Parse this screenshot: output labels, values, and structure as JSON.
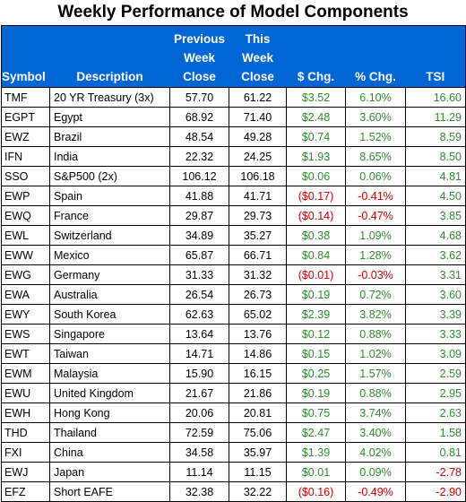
{
  "title": "Weekly Performance of Model Components",
  "headers": {
    "symbol": "Symbol",
    "description": "Description",
    "prev_line1": "Previous",
    "prev_line2": "Week",
    "prev_line3": "Close",
    "this_line1": "This",
    "this_line2": "Week",
    "this_line3": "Close",
    "dollar_chg": "$ Chg.",
    "pct_chg": "% Chg.",
    "tsi": "TSI"
  },
  "colors": {
    "header_bg": "#0066d6",
    "positive": "#2e8b2e",
    "negative": "#cc0000"
  },
  "rows": [
    {
      "symbol": "TMF",
      "description": "20 YR Treasury (3x)",
      "prev": "57.70",
      "curr": "61.22",
      "dchg": "$3.52",
      "pchg": "6.10%",
      "tsi": "16.60",
      "d_neg": false,
      "p_neg": false,
      "t_neg": false
    },
    {
      "symbol": "EGPT",
      "description": "Egypt",
      "prev": "68.92",
      "curr": "71.40",
      "dchg": "$2.48",
      "pchg": "3.60%",
      "tsi": "11.29",
      "d_neg": false,
      "p_neg": false,
      "t_neg": false
    },
    {
      "symbol": "EWZ",
      "description": "Brazil",
      "prev": "48.54",
      "curr": "49.28",
      "dchg": "$0.74",
      "pchg": "1.52%",
      "tsi": "8.59",
      "d_neg": false,
      "p_neg": false,
      "t_neg": false
    },
    {
      "symbol": "IFN",
      "description": "India",
      "prev": "22.32",
      "curr": "24.25",
      "dchg": "$1.93",
      "pchg": "8.65%",
      "tsi": "8.50",
      "d_neg": false,
      "p_neg": false,
      "t_neg": false
    },
    {
      "symbol": "SSO",
      "description": "S&P500 (2x)",
      "prev": "106.12",
      "curr": "106.18",
      "dchg": "$0.06",
      "pchg": "0.06%",
      "tsi": "4.81",
      "d_neg": false,
      "p_neg": false,
      "t_neg": false
    },
    {
      "symbol": "EWP",
      "description": "Spain",
      "prev": "41.88",
      "curr": "41.71",
      "dchg": "($0.17)",
      "pchg": "-0.41%",
      "tsi": "4.50",
      "d_neg": true,
      "p_neg": true,
      "t_neg": false
    },
    {
      "symbol": "EWQ",
      "description": "France",
      "prev": "29.87",
      "curr": "29.73",
      "dchg": "($0.14)",
      "pchg": "-0.47%",
      "tsi": "3.85",
      "d_neg": true,
      "p_neg": true,
      "t_neg": false
    },
    {
      "symbol": "EWL",
      "description": "Switzerland",
      "prev": "34.89",
      "curr": "35.27",
      "dchg": "$0.38",
      "pchg": "1.09%",
      "tsi": "4.68",
      "d_neg": false,
      "p_neg": false,
      "t_neg": false
    },
    {
      "symbol": "EWW",
      "description": "Mexico",
      "prev": "65.87",
      "curr": "66.71",
      "dchg": "$0.84",
      "pchg": "1.28%",
      "tsi": "3.62",
      "d_neg": false,
      "p_neg": false,
      "t_neg": false
    },
    {
      "symbol": "EWG",
      "description": "Germany",
      "prev": "31.33",
      "curr": "31.32",
      "dchg": "($0.01)",
      "pchg": "-0.03%",
      "tsi": "3.31",
      "d_neg": true,
      "p_neg": true,
      "t_neg": false
    },
    {
      "symbol": "EWA",
      "description": "Australia",
      "prev": "26.54",
      "curr": "26.73",
      "dchg": "$0.19",
      "pchg": "0.72%",
      "tsi": "3.60",
      "d_neg": false,
      "p_neg": false,
      "t_neg": false
    },
    {
      "symbol": "EWY",
      "description": "South Korea",
      "prev": "62.63",
      "curr": "65.02",
      "dchg": "$2.39",
      "pchg": "3.82%",
      "tsi": "3.39",
      "d_neg": false,
      "p_neg": false,
      "t_neg": false
    },
    {
      "symbol": "EWS",
      "description": "Singapore",
      "prev": "13.64",
      "curr": "13.76",
      "dchg": "$0.12",
      "pchg": "0.88%",
      "tsi": "3.33",
      "d_neg": false,
      "p_neg": false,
      "t_neg": false
    },
    {
      "symbol": "EWT",
      "description": "Taiwan",
      "prev": "14.71",
      "curr": "14.86",
      "dchg": "$0.15",
      "pchg": "1.02%",
      "tsi": "3.09",
      "d_neg": false,
      "p_neg": false,
      "t_neg": false
    },
    {
      "symbol": "EWM",
      "description": "Malaysia",
      "prev": "15.90",
      "curr": "16.15",
      "dchg": "$0.25",
      "pchg": "1.57%",
      "tsi": "2.59",
      "d_neg": false,
      "p_neg": false,
      "t_neg": false
    },
    {
      "symbol": "EWU",
      "description": "United Kingdom",
      "prev": "21.67",
      "curr": "21.86",
      "dchg": "$0.19",
      "pchg": "0.88%",
      "tsi": "2.95",
      "d_neg": false,
      "p_neg": false,
      "t_neg": false
    },
    {
      "symbol": "EWH",
      "description": "Hong Kong",
      "prev": "20.06",
      "curr": "20.81",
      "dchg": "$0.75",
      "pchg": "3.74%",
      "tsi": "2.63",
      "d_neg": false,
      "p_neg": false,
      "t_neg": false
    },
    {
      "symbol": "THD",
      "description": "Thailand",
      "prev": "72.59",
      "curr": "75.06",
      "dchg": "$2.47",
      "pchg": "3.40%",
      "tsi": "1.58",
      "d_neg": false,
      "p_neg": false,
      "t_neg": false
    },
    {
      "symbol": "FXI",
      "description": "China",
      "prev": "34.58",
      "curr": "35.97",
      "dchg": "$1.39",
      "pchg": "4.02%",
      "tsi": "0.81",
      "d_neg": false,
      "p_neg": false,
      "t_neg": false
    },
    {
      "symbol": "EWJ",
      "description": "Japan",
      "prev": "11.14",
      "curr": "11.15",
      "dchg": "$0.01",
      "pchg": "0.09%",
      "tsi": "-2.78",
      "d_neg": false,
      "p_neg": false,
      "t_neg": true
    },
    {
      "symbol": "EFZ",
      "description": "Short EAFE",
      "prev": "32.38",
      "curr": "32.22",
      "dchg": "($0.16)",
      "pchg": "-0.49%",
      "tsi": "-2.90",
      "d_neg": true,
      "p_neg": true,
      "t_neg": true
    }
  ]
}
